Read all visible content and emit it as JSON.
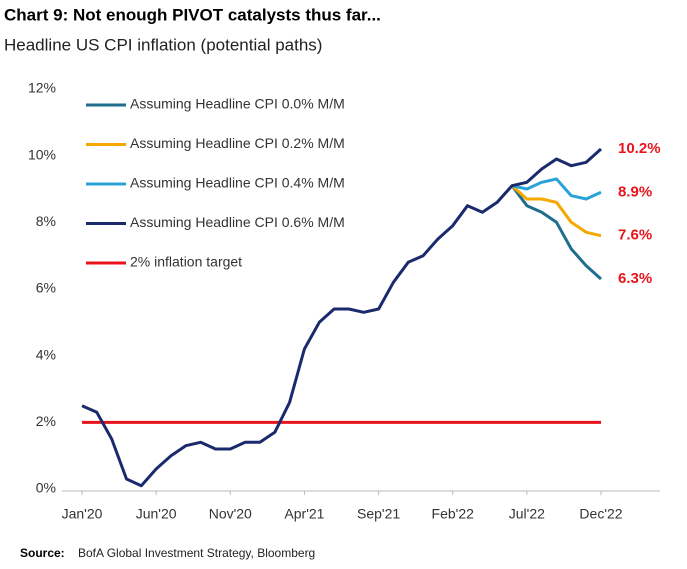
{
  "chart_data": {
    "type": "line",
    "title": "Chart 9: Not enough PIVOT catalysts thus far...",
    "subtitle": "Headline US CPI inflation (potential paths)",
    "source": {
      "label": "Source:",
      "text": "BofA Global Investment Strategy, Bloomberg"
    },
    "categories": [
      "Jan'20",
      null,
      null,
      null,
      null,
      "Jun'20",
      null,
      null,
      null,
      null,
      "Nov'20",
      null,
      null,
      null,
      null,
      "Apr'21",
      null,
      null,
      null,
      null,
      "Sep'21",
      null,
      null,
      null,
      null,
      "Feb'22",
      null,
      null,
      null,
      null,
      "Jul'22",
      null,
      null,
      null,
      null,
      "Dec'22"
    ],
    "series": [
      {
        "name": "Assuming Headline CPI 0.0% M/M",
        "color": "#1f6e8c",
        "end_label": "6.3%",
        "values": [
          null,
          null,
          null,
          null,
          null,
          null,
          null,
          null,
          null,
          null,
          null,
          null,
          null,
          null,
          null,
          null,
          null,
          null,
          null,
          null,
          null,
          null,
          null,
          null,
          null,
          null,
          null,
          null,
          null,
          9.1,
          8.5,
          8.3,
          8.0,
          7.2,
          6.7,
          6.3
        ]
      },
      {
        "name": "Assuming Headline CPI 0.2% M/M",
        "color": "#f5a800",
        "end_label": "7.6%",
        "values": [
          null,
          null,
          null,
          null,
          null,
          null,
          null,
          null,
          null,
          null,
          null,
          null,
          null,
          null,
          null,
          null,
          null,
          null,
          null,
          null,
          null,
          null,
          null,
          null,
          null,
          null,
          null,
          null,
          null,
          9.1,
          8.7,
          8.7,
          8.6,
          8.0,
          7.7,
          7.6
        ]
      },
      {
        "name": "Assuming Headline CPI 0.4% M/M",
        "color": "#2aa3d8",
        "end_label": "8.9%",
        "values": [
          null,
          null,
          null,
          null,
          null,
          null,
          null,
          null,
          null,
          null,
          null,
          null,
          null,
          null,
          null,
          null,
          null,
          null,
          null,
          null,
          null,
          null,
          null,
          null,
          null,
          null,
          null,
          null,
          null,
          9.1,
          9.0,
          9.2,
          9.3,
          8.8,
          8.7,
          8.9
        ]
      },
      {
        "name": "Assuming Headline CPI 0.6% M/M",
        "color": "#1a2a6c",
        "end_label": "10.2%",
        "values": [
          2.5,
          2.3,
          1.5,
          0.3,
          0.1,
          0.6,
          1.0,
          1.3,
          1.4,
          1.2,
          1.2,
          1.4,
          1.4,
          1.7,
          2.6,
          4.2,
          5.0,
          5.4,
          5.4,
          5.3,
          5.4,
          6.2,
          6.8,
          7.0,
          7.5,
          7.9,
          8.5,
          8.3,
          8.6,
          9.1,
          9.2,
          9.6,
          9.9,
          9.7,
          9.8,
          10.2
        ]
      }
    ],
    "reference_line": {
      "name": "2% inflation target",
      "value": 2,
      "color": "#e8141c"
    },
    "end_label_color": "#e8141c",
    "ylim": [
      0,
      12
    ],
    "yticks": [
      {
        "value": 0,
        "label": "0%"
      },
      {
        "value": 2,
        "label": "2%"
      },
      {
        "value": 4,
        "label": "4%"
      },
      {
        "value": 6,
        "label": "6%"
      },
      {
        "value": 8,
        "label": "8%"
      },
      {
        "value": 10,
        "label": "10%"
      },
      {
        "value": 12,
        "label": "12%"
      }
    ],
    "grid": false,
    "legend": "top-left"
  }
}
